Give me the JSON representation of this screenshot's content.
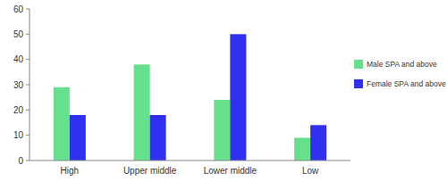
{
  "chart_data": {
    "type": "bar",
    "categories": [
      "High",
      "Upper middle",
      "Lower middle",
      "Low"
    ],
    "series": [
      {
        "name": "Male SPA and above",
        "color": "#66e08c",
        "values": [
          29,
          38,
          24,
          9
        ]
      },
      {
        "name": "Female SPA and above",
        "color": "#3030f0",
        "values": [
          18,
          18,
          50,
          14
        ]
      }
    ],
    "ylim": [
      0,
      60
    ],
    "yticks": [
      0,
      10,
      20,
      30,
      40,
      50,
      60
    ],
    "grid": false,
    "legend": "right"
  }
}
